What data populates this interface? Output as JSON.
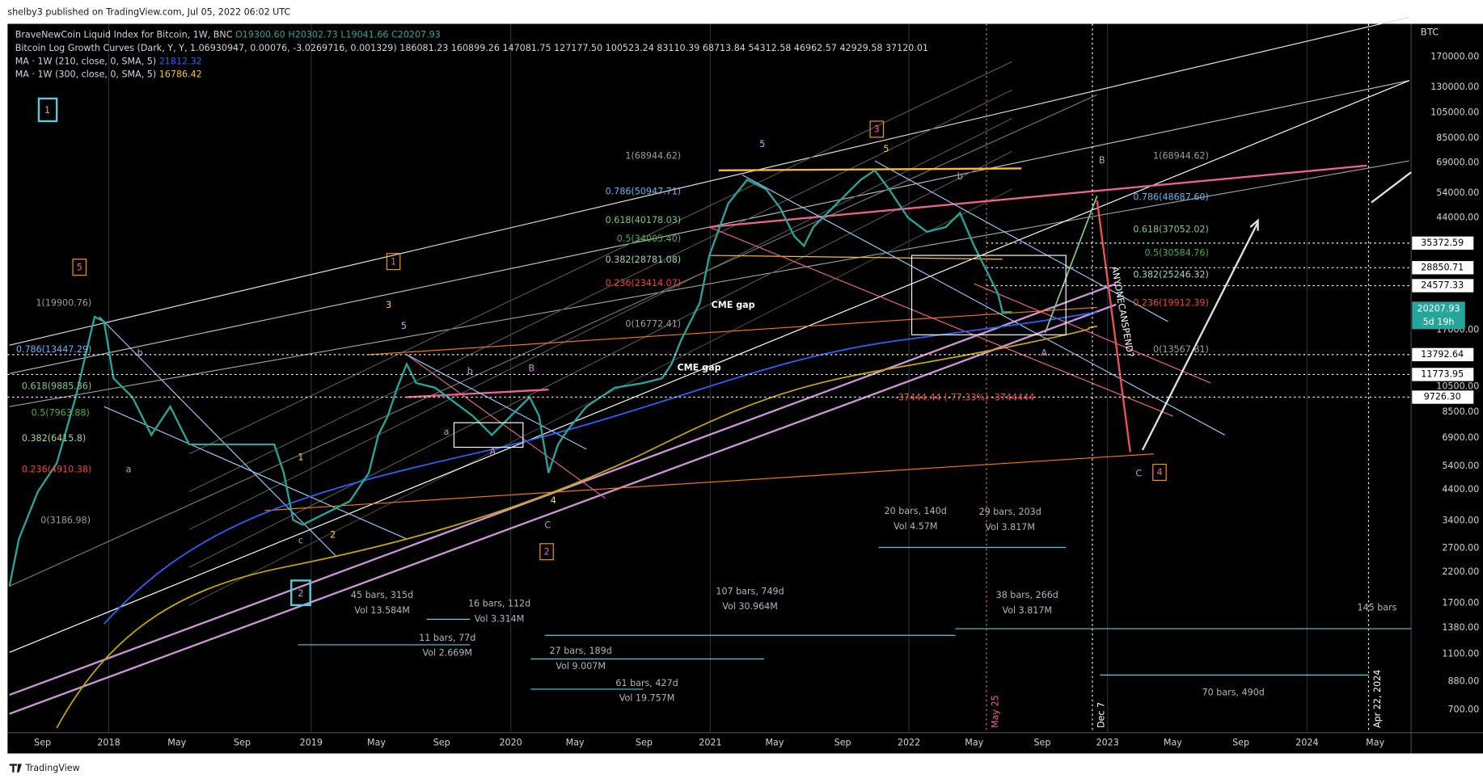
{
  "header": {
    "published": "shelby3 published on TradingView.com, Jul 05, 2022 06:02 UTC",
    "brand": "TradingView"
  },
  "legend": {
    "symbol": "BraveNewCoin Liquid Index for Bitcoin, 1W, BNC",
    "open": "O19300.60",
    "high": "H20302.73",
    "low": "L19041.66",
    "close": "C20207.93",
    "growth": "Bitcoin Log Growth Curves (Dark, Y, Y, 1.06930947, 0.00076, -3.0269716, 0.001329)",
    "growth_values": "186081.23 160899.26 147081.75 127177.50 100523.24 83110.39 68713.84 54312.58 46962.57 42929.58 37120.01",
    "ma210": "MA · 1W (210, close, 0, SMA, 5)",
    "ma210_value": "21812.32",
    "ma300": "MA · 1W (300, close, 0, SMA, 5)",
    "ma300_value": "16786.42"
  },
  "price_axis": {
    "currency": "BTC",
    "labels": [
      "170000.00",
      "130000.00",
      "105000.00",
      "85000.00",
      "69000.00",
      "54000.00",
      "44000.00",
      "17000.00",
      "10500.00",
      "8500.00",
      "6900.00",
      "5400.00",
      "4400.00",
      "3400.00",
      "2700.00",
      "2200.00",
      "1700.00",
      "1380.00",
      "1100.00",
      "880.00",
      "700.00"
    ],
    "tags": [
      "35372.59",
      "28850.71",
      "24577.33",
      "13792.64",
      "11773.95",
      "9726.30"
    ],
    "last": "20207.93",
    "countdown": "5d 19h"
  },
  "time_axis": [
    "Sep",
    "2018",
    "May",
    "Sep",
    "2019",
    "May",
    "Sep",
    "2020",
    "May",
    "Sep",
    "2021",
    "May",
    "Sep",
    "2022",
    "May",
    "Sep",
    "2023",
    "May",
    "Sep",
    "2024",
    "May"
  ],
  "markers": [
    "May 25",
    "Dec 7",
    "Apr 22, 2024"
  ],
  "fib_left": [
    "1(19900.76)",
    "0.786(13447.29)",
    "0.618(9885.36)",
    "0.5(7963.88)",
    "0.382(6415.8)",
    "0.236(4910.38)",
    "0(3186.98)"
  ],
  "fib_mid": [
    "1(68944.62)",
    "0.786(50947.71)",
    "0.618(40178.03)",
    "0.5(34005.40)",
    "0.382(28781.08)",
    "0.236(23414.07)",
    "0(16772.41)"
  ],
  "fib_right": [
    "1(68944.62)",
    "0.786(48687.60)",
    "0.618(37052.02)",
    "0.5(30584.76)",
    "0.382(25246.32)",
    "0.236(19912.39)",
    "0(13567.81)"
  ],
  "stats": [
    "45 bars, 315d",
    "Vol 13.584M",
    "16 bars, 112d",
    "Vol 3.314M",
    "11 bars, 77d",
    "Vol 2.669M",
    "27 bars, 189d",
    "Vol 9.007M",
    "61 bars, 427d",
    "Vol 19.757M",
    "107 bars, 749d",
    "Vol 30.964M",
    "20 bars, 140d",
    "Vol 4.57M",
    "29 bars, 203d",
    "Vol 3.817M",
    "38 bars, 266d",
    "Vol 3.817M",
    "145 bars",
    "70 bars, 490d"
  ],
  "notes": {
    "cme": "CME gap",
    "anyone": "ANYONECANSPEND?",
    "drop": "-37444.44 (-77.33%) -3744444"
  },
  "waves": [
    "1",
    "5",
    "1",
    "3",
    "2",
    "2",
    "4",
    "3",
    "5",
    "b",
    "a",
    "c",
    "2",
    "1",
    "B",
    "b",
    "a",
    "A",
    "C",
    "4",
    "5",
    "5",
    "b",
    "B",
    "A",
    "C"
  ]
}
